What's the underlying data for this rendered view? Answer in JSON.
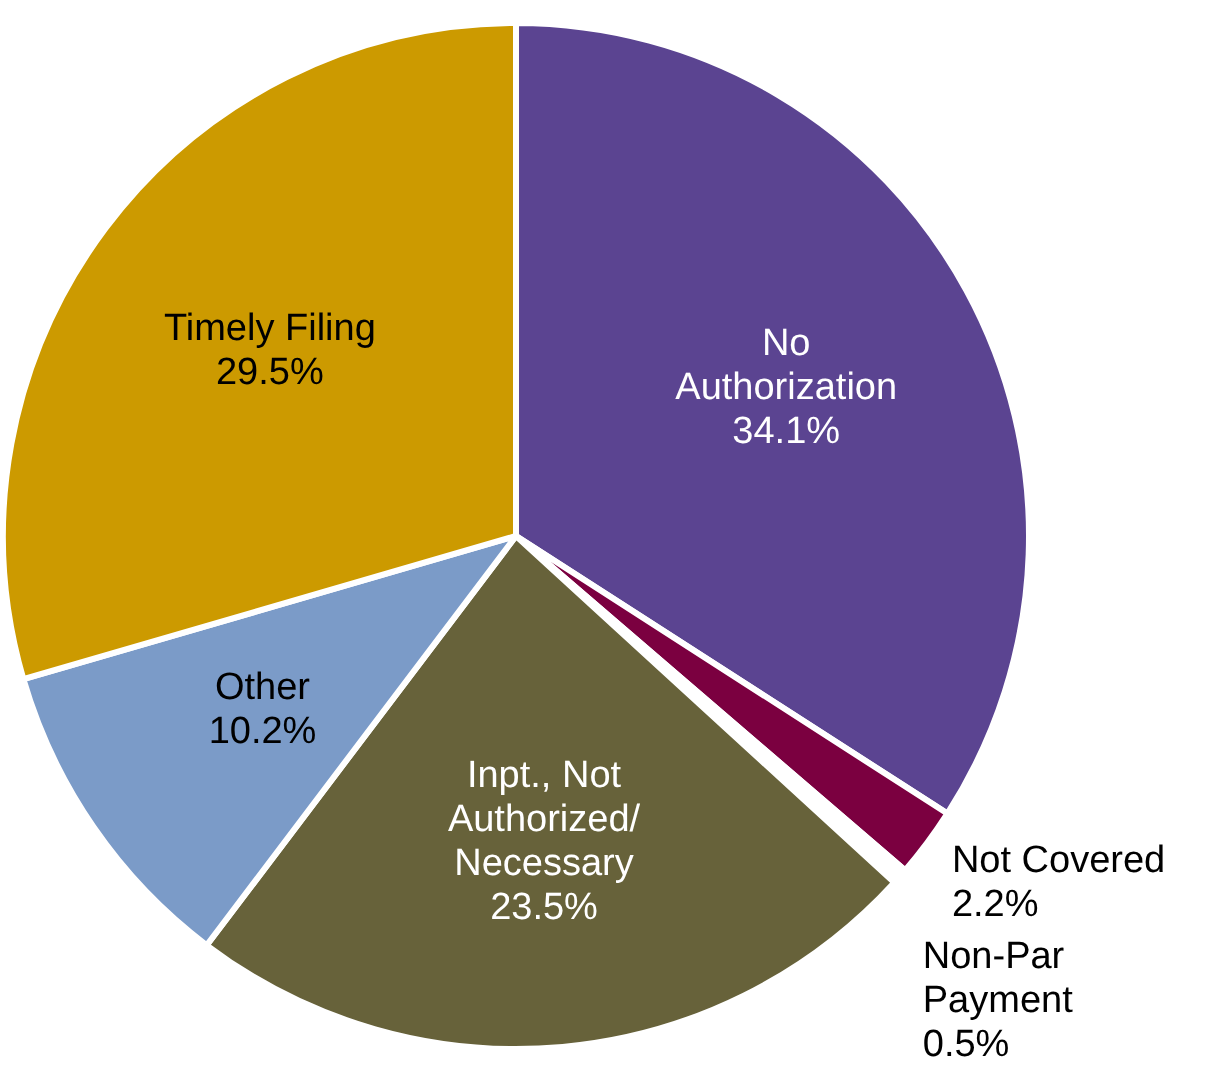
{
  "chart_data": {
    "type": "pie",
    "categories": [
      "No\nAuthorization",
      "Not Covered",
      "Non-Par\nPayment",
      "Inpt., Not\nAuthorized/\nNecessary",
      "Other",
      "Timely Filing"
    ],
    "values": [
      34.1,
      2.2,
      0.5,
      23.5,
      10.2,
      29.5
    ],
    "colors": [
      "#5b4491",
      "#7b0040",
      "#ffffff",
      "#67623a",
      "#7b9bc8",
      "#cc9a00"
    ],
    "value_labels": [
      "34.1%",
      "2.2%",
      "0.5%",
      "23.5%",
      "10.2%",
      "29.5%"
    ],
    "legend": false
  }
}
